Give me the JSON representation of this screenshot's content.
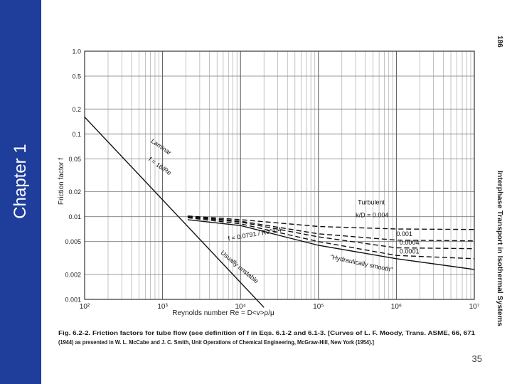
{
  "slide": {
    "chapter_label": "Chapter 1",
    "page_number": "35",
    "book_page": "186",
    "side_header": "Interphase Transport in Isothermal Systems"
  },
  "figure": {
    "caption_line1": "Fig. 6.2-2.   Friction factors for tube flow (see definition of f in Eqs. 6.1-2 and 6.1-3. [Curves of L. F. Moody, Trans. ASME, 66, 671",
    "caption_line2": "(1944) as presented in W. L. McCabe and J. C. Smith, Unit Operations of Chemical Engineering, McGraw-Hill, New York (1954).]"
  },
  "chart_data": {
    "type": "line",
    "x_scale": "log",
    "y_scale": "log",
    "xlim": [
      100,
      10000000
    ],
    "ylim": [
      0.001,
      1.0
    ],
    "xlabel": "Reynolds number Re = D<v>ρ/μ",
    "ylabel": "Friction factor f",
    "x_ticks": [
      "10²",
      "10³",
      "10⁴",
      "10⁵",
      "10⁶",
      "10⁷"
    ],
    "x_tick_values": [
      100,
      1000,
      10000,
      100000,
      1000000,
      10000000
    ],
    "y_ticks": [
      "0.001",
      "0.002",
      "0.005",
      "0.01",
      "0.02",
      "0.05",
      "0.1",
      "0.2",
      "0.5",
      "1.0"
    ],
    "y_tick_values": [
      0.001,
      0.002,
      0.005,
      0.01,
      0.02,
      0.05,
      0.1,
      0.2,
      0.5,
      1.0
    ],
    "grid": true,
    "series": [
      {
        "key": "laminar",
        "style": "solid",
        "x": [
          100,
          20000
        ],
        "y": [
          0.16,
          0.0008
        ]
      },
      {
        "key": "smooth",
        "style": "solid",
        "x": [
          2100,
          10000,
          100000,
          1000000,
          10000000
        ],
        "y": [
          0.0092,
          0.0078,
          0.0045,
          0.0031,
          0.0023
        ]
      },
      {
        "key": "kD_0.004",
        "style": "dashed",
        "x": [
          2100,
          10000,
          100000,
          1000000,
          10000000
        ],
        "y": [
          0.0102,
          0.0092,
          0.0076,
          0.0071,
          0.007
        ]
      },
      {
        "key": "kD_0.001",
        "style": "dashed",
        "x": [
          2100,
          10000,
          100000,
          1000000,
          10000000
        ],
        "y": [
          0.0101,
          0.0088,
          0.0062,
          0.0052,
          0.0051
        ]
      },
      {
        "key": "kD_0.0004",
        "style": "dashed",
        "x": [
          2100,
          10000,
          100000,
          1000000,
          10000000
        ],
        "y": [
          0.0099,
          0.0086,
          0.0057,
          0.0042,
          0.0041
        ]
      },
      {
        "key": "kD_0.0001",
        "style": "dashed",
        "x": [
          2100,
          10000,
          100000,
          1000000,
          10000000
        ],
        "y": [
          0.0097,
          0.0082,
          0.005,
          0.0034,
          0.0031
        ]
      }
    ],
    "annotations": [
      {
        "text": "Laminar",
        "x": 700,
        "y": 0.08,
        "rotate": 35
      },
      {
        "text": "f = 16/Re",
        "x": 650,
        "y": 0.048,
        "rotate": 35
      },
      {
        "text": "Usually unstable",
        "x": 5500,
        "y": 0.0036,
        "rotate": 40
      },
      {
        "text": "Turbulent",
        "x": 320000,
        "y": 0.014,
        "rotate": 0
      },
      {
        "text": "k/D = 0.004",
        "x": 300000,
        "y": 0.0098,
        "rotate": 0
      },
      {
        "text": "0.001",
        "x": 1000000,
        "y": 0.0058,
        "rotate": 0
      },
      {
        "text": "0.0004",
        "x": 1100000,
        "y": 0.0046,
        "rotate": 0
      },
      {
        "text": "0.0001",
        "x": 1100000,
        "y": 0.0036,
        "rotate": 0
      },
      {
        "text": "\"Hydraulically smooth\"",
        "x": 140000,
        "y": 0.0031,
        "rotate": 12
      },
      {
        "text": "f = 0.0791 / Re^1/4",
        "x": 7000,
        "y": 0.0051,
        "rotate": -10
      }
    ]
  }
}
